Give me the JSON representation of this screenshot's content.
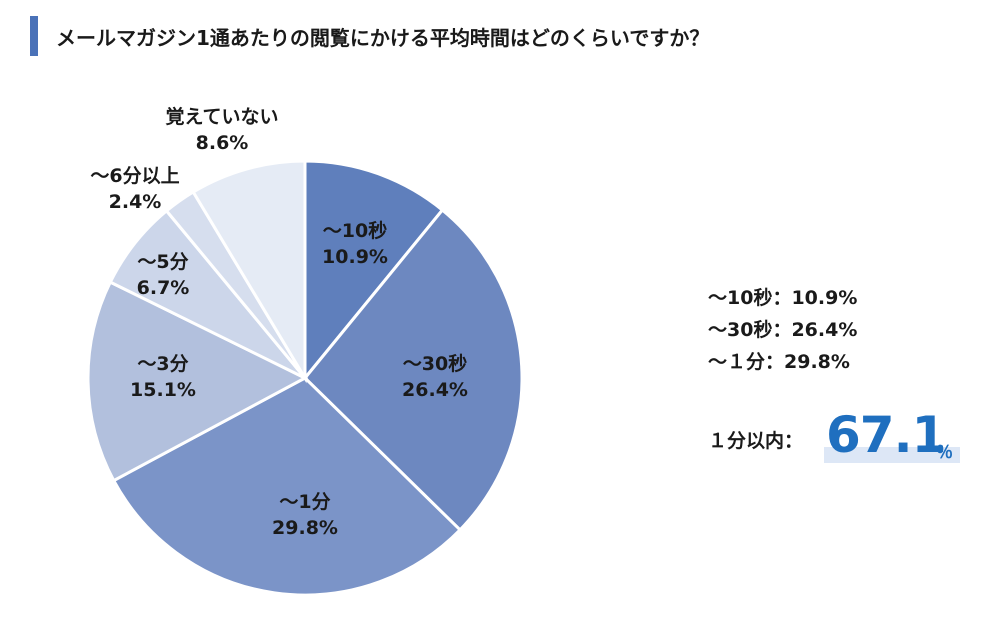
{
  "title": "メールマガジン1通あたりの閲覧にかける平均時間はどのくらいですか？",
  "colors": {
    "accent_bar": "#4a72b8",
    "highlight_text": "#1f6fbf",
    "highlight_bg": "#dde7f6"
  },
  "chart_data": {
    "type": "pie",
    "unit": "%",
    "slices": [
      {
        "name": "～10秒",
        "value": 10.9,
        "label": "10.9%",
        "color": "#5f7fbc"
      },
      {
        "name": "～30秒",
        "value": 26.4,
        "label": "26.4%",
        "color": "#6d88c0"
      },
      {
        "name": "～1分",
        "value": 29.8,
        "label": "29.8%",
        "color": "#7b94c8"
      },
      {
        "name": "～3分",
        "value": 15.1,
        "label": "15.1%",
        "color": "#b2c0dd"
      },
      {
        "name": "～5分",
        "value": 6.7,
        "label": "6.7%",
        "color": "#ccd6ea"
      },
      {
        "name": "～6分以上",
        "value": 2.4,
        "label": "2.4%",
        "color": "#d6deee"
      },
      {
        "name": "覚えていない",
        "value": 8.6,
        "label": "8.6%",
        "color": "#e5ebf5"
      }
    ]
  },
  "summary": {
    "lines": [
      "～10秒：10.9%",
      "～30秒：26.4%",
      "～１分：29.8%"
    ],
    "total_label": "１分以内：",
    "total_value": "67.1",
    "total_unit": "％"
  }
}
